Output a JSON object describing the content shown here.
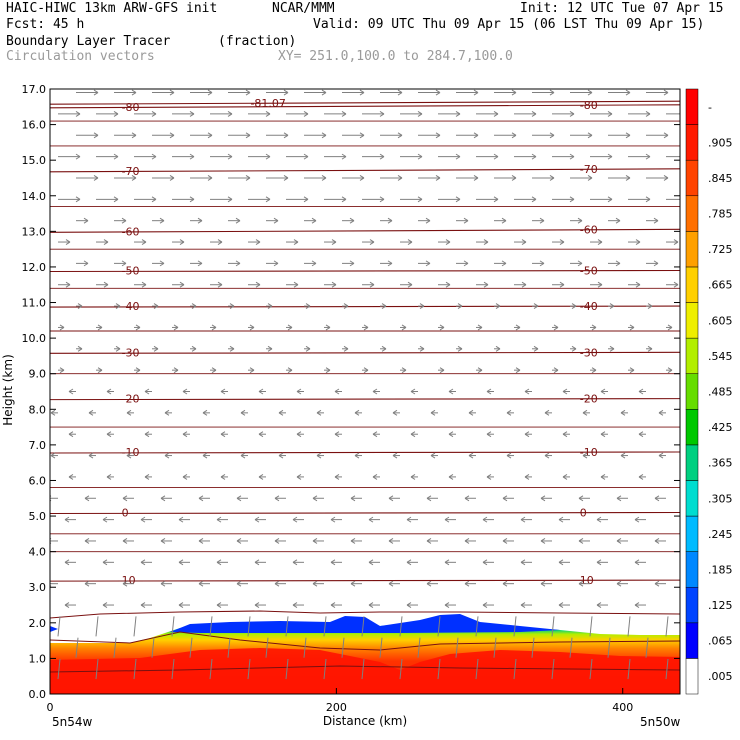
{
  "header": {
    "line1_left": "HAIC-HIWC 13km ARW-GFS init",
    "line1_mid": "NCAR/MMM",
    "line1_right": "Init: 12 UTC Tue 07 Apr 15",
    "line2_left": "Fcst:   45 h",
    "line2_right": "Valid: 09 UTC Thu 09 Apr 15 (06 LST Thu 09 Apr 15)",
    "line3_left": "Boundary Layer Tracer",
    "line3_mid": "(fraction)",
    "line4_left": "Circulation vectors",
    "line4_mid": "XY= 251.0,100.0 to 284.7,100.0"
  },
  "colors": {
    "contour": "#7a1010",
    "vector": "#808080",
    "tracer_high": "#ff1a00",
    "tracer_low": "#0022ff"
  },
  "chart_data": {
    "type": "heatmap",
    "title": "Boundary Layer Tracer",
    "units": "(fraction)",
    "overlay": "Circulation vectors",
    "xlabel": "Distance (km)",
    "ylabel": "Height (km)",
    "xlim": [
      0,
      440
    ],
    "ylim": [
      0,
      17
    ],
    "x_ticks": [
      "0",
      "200",
      "400"
    ],
    "y_ticks": [
      "0.0",
      "1.0",
      "2.0",
      "3.0",
      "4.0",
      "5.0",
      "6.0",
      "7.0",
      "8.0",
      "9.0",
      "10.0",
      "11.0",
      "12.0",
      "13.0",
      "14.0",
      "15.0",
      "16.0",
      "17.0"
    ],
    "left_endpoint": "5n54w",
    "right_endpoint": "5n50w",
    "colorbar": {
      "labels": [
        ".005",
        ".065",
        ".125",
        ".185",
        ".245",
        ".305",
        ".365",
        ".425",
        ".485",
        ".545",
        ".605",
        ".665",
        ".725",
        ".785",
        ".845",
        ".905",
        "-"
      ],
      "colors": [
        "#ffffff",
        "#0000ff",
        "#0044ff",
        "#0088ff",
        "#00bbff",
        "#00ddd0",
        "#00d080",
        "#00c800",
        "#66dd00",
        "#b2ee00",
        "#eeee00",
        "#ffd000",
        "#ffa000",
        "#ff7000",
        "#ff4400",
        "#ff1a00",
        "#ff0000"
      ]
    },
    "temperature_contours": [
      {
        "label": "10",
        "height": 3.2
      },
      {
        "label": "0",
        "height": 5.1
      },
      {
        "label": "-10",
        "height": 6.8
      },
      {
        "label": "-20",
        "height": 8.3
      },
      {
        "label": "-30",
        "height": 9.6
      },
      {
        "label": "-40",
        "height": 10.9
      },
      {
        "label": "-50",
        "height": 11.9
      },
      {
        "label": "-60",
        "height": 13.0
      },
      {
        "label": "-70",
        "height": 14.7
      },
      {
        "label": "-80",
        "height": 16.5
      },
      {
        "label": "-81.07",
        "height": 16.6
      }
    ]
  }
}
